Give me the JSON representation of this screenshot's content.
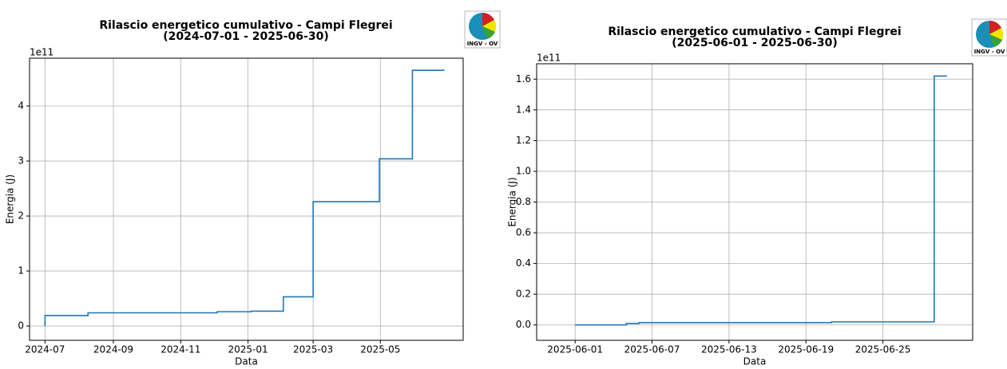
{
  "chart_data": [
    {
      "type": "step",
      "title": "Rilascio energetico cumulativo - Campi Flegrei",
      "subtitle": "(2024-07-01 - 2025-06-30)",
      "logo": "INGV - OV",
      "x_label": "Data",
      "y_label": "Energia (J)",
      "y_offset_label": "1e11",
      "x": [
        "2024-07-01",
        "2024-07-01",
        "2024-08-09",
        "2024-12-04",
        "2025-01-04",
        "2025-02-02",
        "2025-03-01",
        "2025-04-30",
        "2025-05-30",
        "2025-06-28"
      ],
      "values": [
        0,
        0.19,
        0.24,
        0.26,
        0.27,
        0.53,
        2.26,
        3.04,
        4.65,
        4.65
      ],
      "color": "#1f77b4",
      "grid": true,
      "xlim": [
        "2024-06-17",
        "2025-07-15"
      ],
      "xticks": [
        {
          "value": "2024-07-01",
          "label": "2024-07"
        },
        {
          "value": "2024-09-01",
          "label": "2024-09"
        },
        {
          "value": "2024-11-01",
          "label": "2024-11"
        },
        {
          "value": "2025-01-01",
          "label": "2025-01"
        },
        {
          "value": "2025-03-01",
          "label": "2025-03"
        },
        {
          "value": "2025-05-01",
          "label": "2025-05"
        }
      ],
      "ylim": [
        -0.26,
        4.87
      ],
      "yticks": [
        0,
        1,
        2,
        3,
        4
      ]
    },
    {
      "type": "step",
      "title": "Rilascio energetico cumulativo - Campi Flegrei",
      "subtitle": "(2025-06-01 - 2025-06-30)",
      "logo": "INGV - OV",
      "x_label": "Data",
      "y_label": "Energia (J)",
      "y_offset_label": "1e11",
      "x": [
        "2025-06-01",
        "2025-06-05",
        "2025-06-06",
        "2025-06-21",
        "2025-06-29",
        "2025-06-30"
      ],
      "values": [
        0.0,
        0.01,
        0.015,
        0.02,
        1.62,
        1.62
      ],
      "color": "#1f77b4",
      "grid": true,
      "xlim": [
        "2025-05-29",
        "2025-07-02"
      ],
      "xticks": [
        "2025-06-01",
        "2025-06-07",
        "2025-06-13",
        "2025-06-19",
        "2025-06-25"
      ],
      "ylim": [
        -0.1,
        1.7
      ],
      "yticks": [
        {
          "value": 0,
          "label": "0.0"
        },
        0.2,
        0.4,
        0.6,
        0.8,
        {
          "value": 1,
          "label": "1.0"
        },
        1.2,
        1.4,
        1.6
      ]
    }
  ]
}
